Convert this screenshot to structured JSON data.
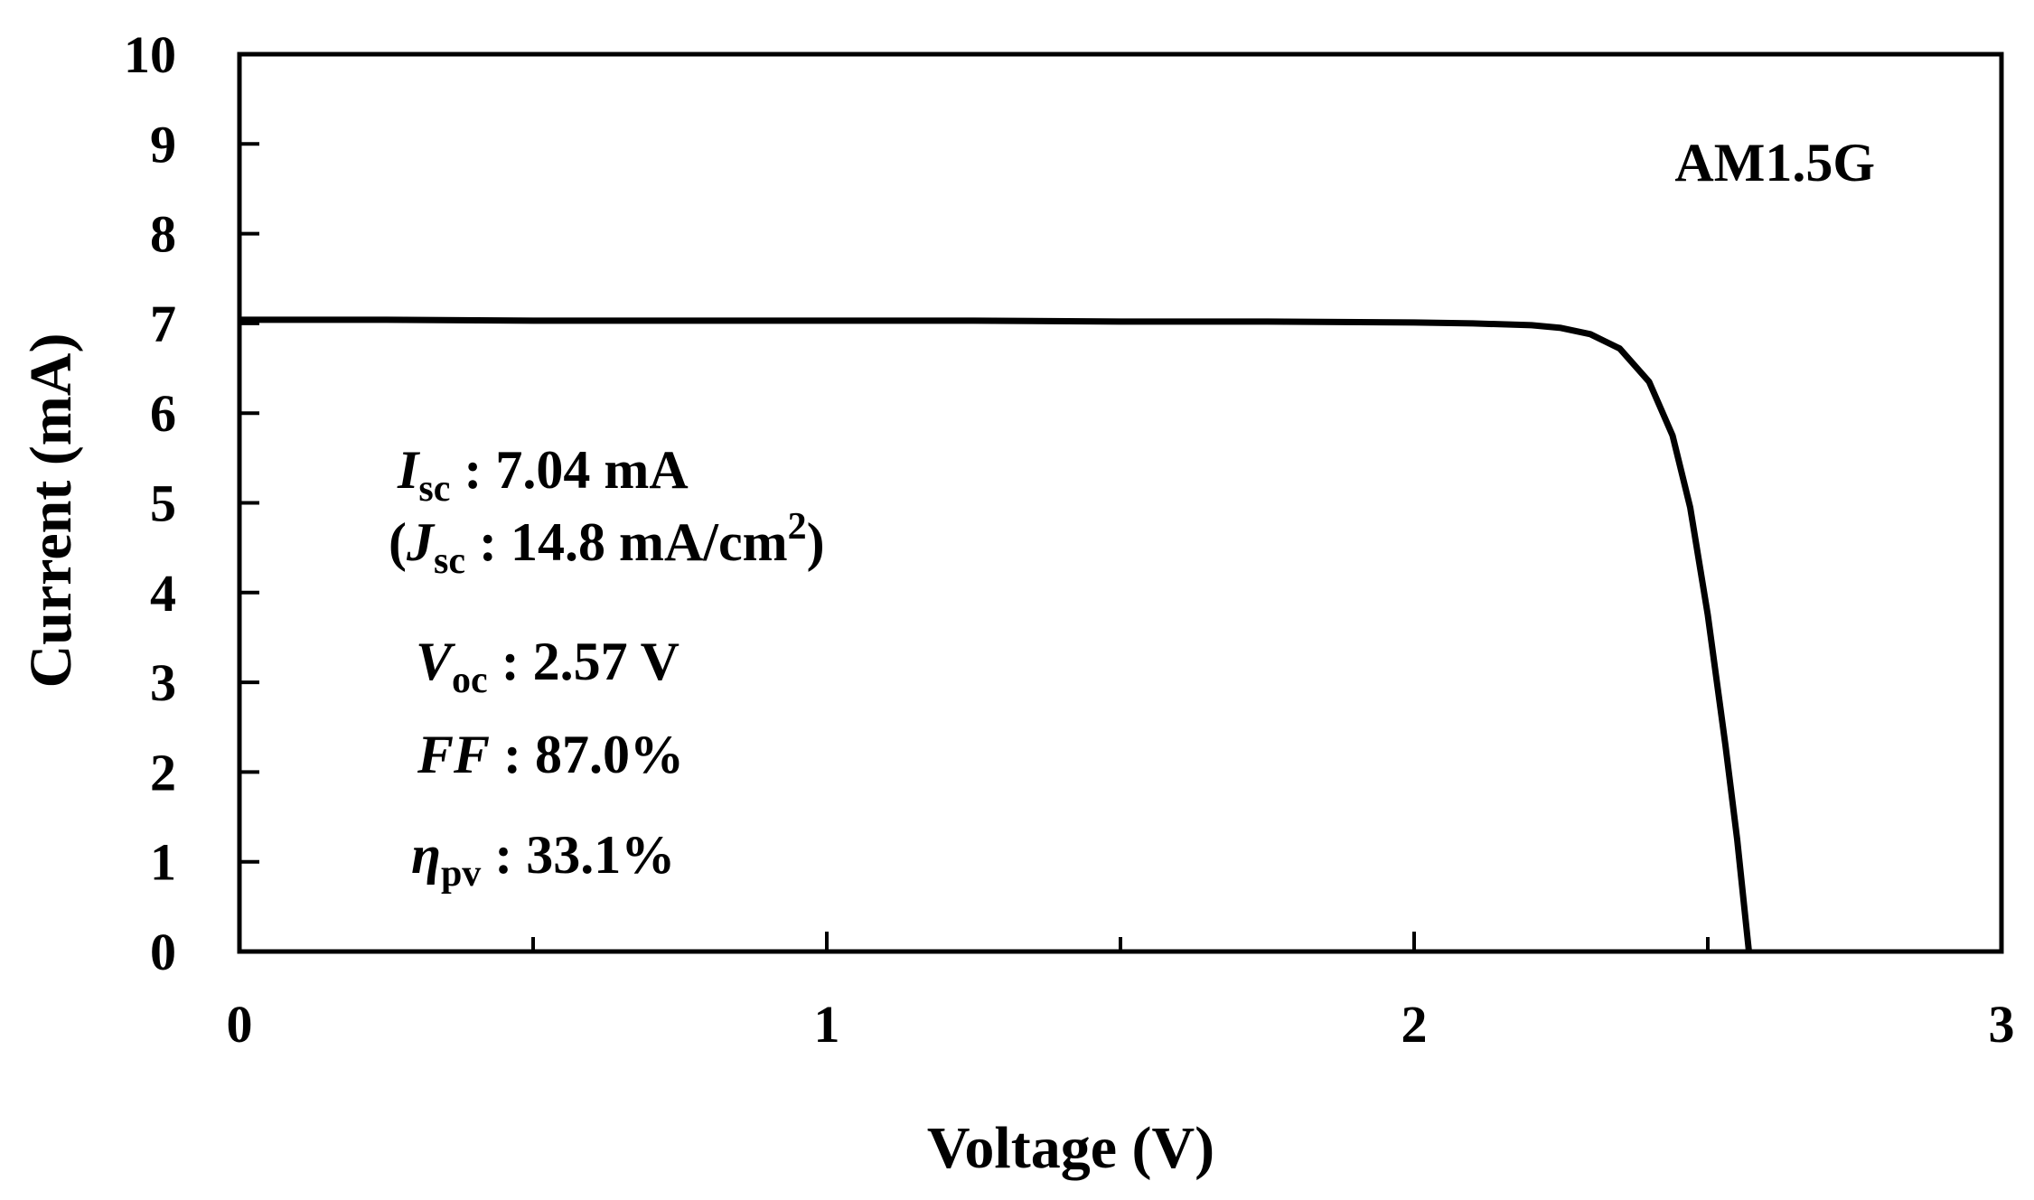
{
  "chart_data": {
    "type": "line",
    "title": "",
    "xlabel": "Voltage (V)",
    "ylabel": "Current (mA)",
    "xlim": [
      0,
      3
    ],
    "ylim": [
      0,
      10
    ],
    "xticks": [
      0,
      1,
      2,
      3
    ],
    "xticks_minor": [
      0.5,
      1.5,
      2.5
    ],
    "yticks": [
      0,
      1,
      2,
      3,
      4,
      5,
      6,
      7,
      8,
      9,
      10
    ],
    "grid": false,
    "legend": "none",
    "condition_label": "AM1.5G",
    "series": [
      {
        "color": "#000000",
        "x": [
          0,
          0.25,
          0.5,
          0.75,
          1.0,
          1.25,
          1.5,
          1.75,
          2.0,
          2.1,
          2.2,
          2.25,
          2.3,
          2.35,
          2.4,
          2.44,
          2.47,
          2.5,
          2.53,
          2.55,
          2.57
        ],
        "y": [
          7.04,
          7.04,
          7.03,
          7.03,
          7.03,
          7.03,
          7.02,
          7.02,
          7.01,
          7.0,
          6.98,
          6.95,
          6.88,
          6.72,
          6.35,
          5.75,
          4.95,
          3.75,
          2.3,
          1.25,
          0.0
        ]
      }
    ],
    "annotations": [
      {
        "symbol": "I",
        "sub": "sc",
        "text": " : 7.04 mA"
      },
      {
        "prefix": "(",
        "symbol": "J",
        "sub": "sc",
        "text": " : 14.8 mA/cm",
        "sup": "2",
        "suffix": ")"
      },
      {
        "symbol": "V",
        "sub": "oc",
        "text": " : 2.57 V"
      },
      {
        "symbol": "FF",
        "sub": "",
        "text": " : 87.0%"
      },
      {
        "symbol": "η",
        "sub": "pv",
        "text": " : 33.1%"
      }
    ]
  }
}
